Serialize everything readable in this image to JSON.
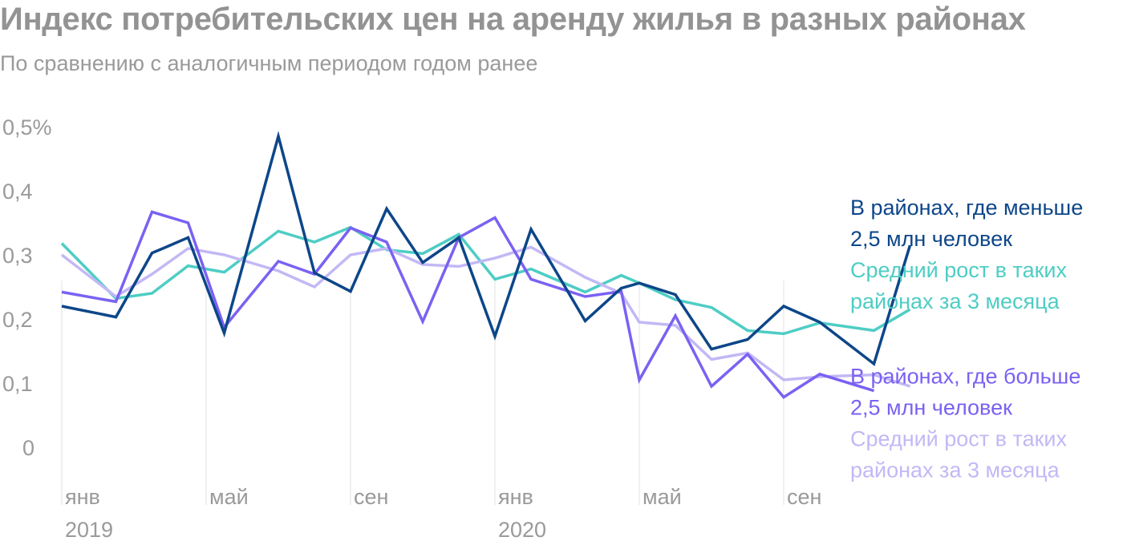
{
  "title": "Индекс потребительских цен на аренду жилья в разных районах",
  "subtitle": "По сравнению с аналогичным периодом годом ранее",
  "chart_data": {
    "type": "line",
    "title": "Индекс потребительских цен на аренду жилья в разных районах",
    "subtitle": "По сравнению с аналогичным периодом годом ранее",
    "xlabel": "",
    "ylabel": "",
    "ylim": [
      0,
      0.5
    ],
    "y_ticks": [
      {
        "value": 0.5,
        "label": "0,5%"
      },
      {
        "value": 0.4,
        "label": "0,4"
      },
      {
        "value": 0.3,
        "label": "0,3"
      },
      {
        "value": 0.2,
        "label": "0,2"
      },
      {
        "value": 0.1,
        "label": "0,1"
      },
      {
        "value": 0,
        "label": "0"
      }
    ],
    "x": [
      "2019-01",
      "2019-02",
      "2019-03",
      "2019-04",
      "2019-05",
      "2019-06",
      "2019-07",
      "2019-08",
      "2019-09",
      "2019-10",
      "2019-11",
      "2019-12",
      "2020-01",
      "2020-02",
      "2020-03",
      "2020-04",
      "2020-05",
      "2020-06",
      "2020-07",
      "2020-08",
      "2020-09",
      "2020-10"
    ],
    "x_ticks": [
      {
        "index": 0,
        "label": "янв",
        "year": "2019"
      },
      {
        "index": 4,
        "label": "май",
        "year": ""
      },
      {
        "index": 8,
        "label": "сен",
        "year": ""
      },
      {
        "index": 12,
        "label": "янв",
        "year": "2020"
      },
      {
        "index": 16,
        "label": "май",
        "year": ""
      },
      {
        "index": 20,
        "label": "сен",
        "year": ""
      }
    ],
    "grid": "vertical lines at month ticks",
    "legend": "right",
    "series": [
      {
        "name": "Средний рост в таких районах за 3 месяца",
        "group": "small",
        "color": "#4ecdc4",
        "points": [
          [
            0,
            0.318
          ],
          [
            1.5,
            0.232
          ],
          [
            2.5,
            0.24
          ],
          [
            3.5,
            0.283
          ],
          [
            4.5,
            0.273
          ],
          [
            6,
            0.337
          ],
          [
            7,
            0.32
          ],
          [
            8,
            0.343
          ],
          [
            9,
            0.308
          ],
          [
            10,
            0.302
          ],
          [
            11,
            0.332
          ],
          [
            12,
            0.262
          ],
          [
            13,
            0.278
          ],
          [
            14.5,
            0.242
          ],
          [
            15.5,
            0.268
          ],
          [
            16,
            0.256
          ],
          [
            17,
            0.23
          ],
          [
            18,
            0.218
          ],
          [
            19,
            0.182
          ],
          [
            20,
            0.177
          ],
          [
            21,
            0.194
          ],
          [
            22.5,
            0.182
          ],
          [
            23.5,
            0.215
          ]
        ]
      },
      {
        "name": "Средний рост в таких районах за 3 месяца",
        "group": "large",
        "color": "#c3b8f5",
        "points": [
          [
            0,
            0.3
          ],
          [
            1.5,
            0.235
          ],
          [
            2.5,
            0.27
          ],
          [
            3.5,
            0.31
          ],
          [
            4.5,
            0.3
          ],
          [
            6,
            0.275
          ],
          [
            7,
            0.25
          ],
          [
            8,
            0.3
          ],
          [
            9,
            0.31
          ],
          [
            10,
            0.285
          ],
          [
            11,
            0.282
          ],
          [
            12,
            0.295
          ],
          [
            13,
            0.312
          ],
          [
            14.5,
            0.265
          ],
          [
            15.5,
            0.24
          ],
          [
            16,
            0.195
          ],
          [
            17,
            0.19
          ],
          [
            18,
            0.137
          ],
          [
            19,
            0.147
          ],
          [
            20,
            0.105
          ],
          [
            21,
            0.11
          ],
          [
            22.5,
            0.113
          ],
          [
            23.5,
            0.095
          ]
        ]
      },
      {
        "name": "В районах, где больше 2,5 млн человек",
        "group": "large",
        "color": "#7b61f2",
        "points": [
          [
            0,
            0.242
          ],
          [
            1.5,
            0.227
          ],
          [
            2.5,
            0.367
          ],
          [
            3.5,
            0.35
          ],
          [
            4.5,
            0.187
          ],
          [
            6,
            0.29
          ],
          [
            7,
            0.27
          ],
          [
            8,
            0.342
          ],
          [
            9,
            0.32
          ],
          [
            10,
            0.196
          ],
          [
            11,
            0.327
          ],
          [
            12,
            0.358
          ],
          [
            13,
            0.262
          ],
          [
            14.5,
            0.235
          ],
          [
            15.5,
            0.243
          ],
          [
            16,
            0.105
          ],
          [
            17,
            0.205
          ],
          [
            18,
            0.095
          ],
          [
            19,
            0.145
          ],
          [
            20,
            0.078
          ],
          [
            21,
            0.114
          ],
          [
            22.5,
            0.088
          ]
        ]
      },
      {
        "name": "В районах, где меньше 2,5 млн человек",
        "group": "small",
        "color": "#0d4689",
        "points": [
          [
            0,
            0.22
          ],
          [
            1.5,
            0.203
          ],
          [
            2.5,
            0.303
          ],
          [
            2.8,
            0.31
          ],
          [
            3.5,
            0.327
          ],
          [
            4.5,
            0.178
          ],
          [
            6,
            0.485
          ],
          [
            7,
            0.272
          ],
          [
            8,
            0.243
          ],
          [
            9,
            0.372
          ],
          [
            10,
            0.288
          ],
          [
            11,
            0.327
          ],
          [
            12,
            0.173
          ],
          [
            13,
            0.34
          ],
          [
            14.5,
            0.197
          ],
          [
            15.5,
            0.248
          ],
          [
            16,
            0.256
          ],
          [
            17,
            0.238
          ],
          [
            18,
            0.153
          ],
          [
            19,
            0.168
          ],
          [
            20,
            0.22
          ],
          [
            21,
            0.195
          ],
          [
            22.5,
            0.13
          ],
          [
            23.5,
            0.315
          ]
        ]
      }
    ],
    "legend_entries": [
      {
        "lines": [
          "В районах, где меньше",
          "2,5 млн человек"
        ],
        "color": "#0d4689"
      },
      {
        "lines": [
          "Средний рост в таких",
          "районах за 3 месяца"
        ],
        "color": "#4ecdc4"
      },
      {
        "lines": [
          "В районах, где больше",
          "2,5 млн человек"
        ],
        "color": "#7b61f2"
      },
      {
        "lines": [
          "Средний рост в таких",
          "районах за 3 месяца"
        ],
        "color": "#c3b8f5"
      }
    ],
    "colors": {
      "title": "#939393",
      "axis_text": "#9a9a9a",
      "grid": "#e0e0e0"
    }
  }
}
